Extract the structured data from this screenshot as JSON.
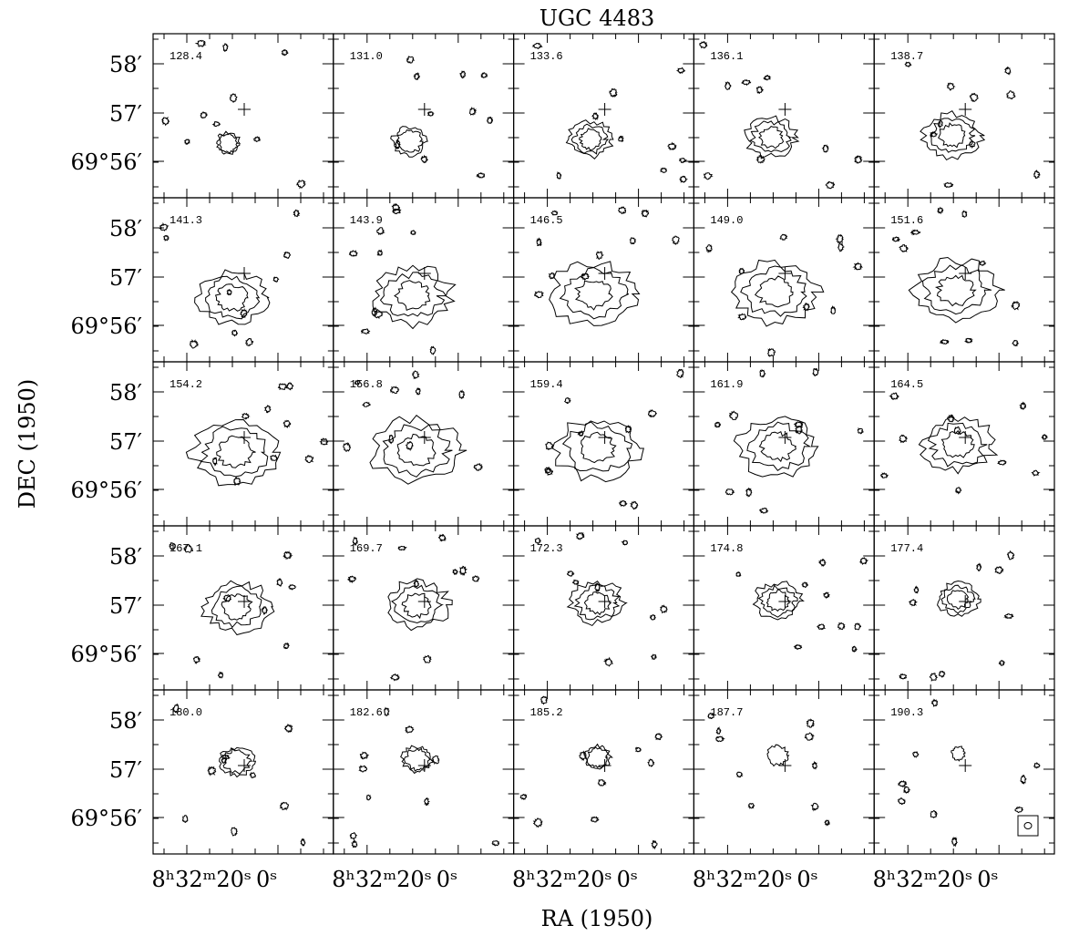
{
  "title": "UGC 4483",
  "x_label": "RA (1950)",
  "y_label": "DEC (1950)",
  "y_tick_labels": [
    "58′",
    "57′",
    "69°56′"
  ],
  "x_tick_labels": [
    "8ʰ32ᵐ20ˢ",
    "0ˢ"
  ],
  "panels": [
    "128.4",
    "131.0",
    "133.6",
    "136.1",
    "138.7",
    "141.3",
    "143.9",
    "146.5",
    "149.0",
    "151.6",
    "154.2",
    "156.8",
    "159.4",
    "161.9",
    "164.5",
    "167.1",
    "169.7",
    "172.3",
    "174.8",
    "177.4",
    "180.0",
    "182.6",
    "185.2",
    "187.7",
    "190.3"
  ]
}
